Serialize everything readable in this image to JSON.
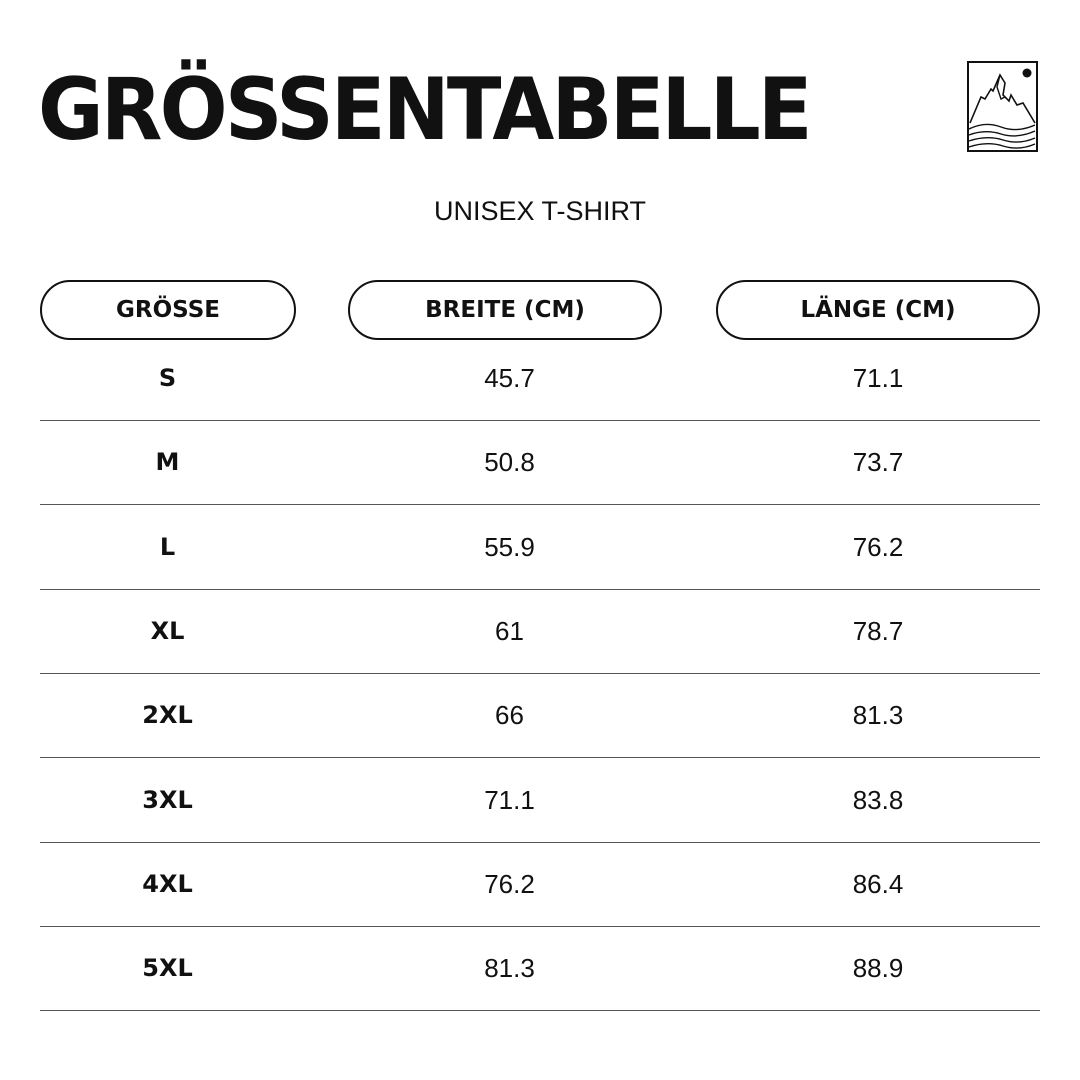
{
  "title": "GRÖSSENTABELLE",
  "subtitle": "UNISEX T-SHIRT",
  "logo": "mountain-sun-logo",
  "headers": [
    "GRÖSSE",
    "BREITE (CM)",
    "LÄNGE (CM)"
  ],
  "rows": [
    [
      "S",
      "45.7",
      "71.1"
    ],
    [
      "M",
      "50.8",
      "73.7"
    ],
    [
      "L",
      "55.9",
      "76.2"
    ],
    [
      "XL",
      "61",
      "78.7"
    ],
    [
      "2XL",
      "66",
      "81.3"
    ],
    [
      "3XL",
      "71.1",
      "83.8"
    ],
    [
      "4XL",
      "76.2",
      "86.4"
    ],
    [
      "5XL",
      "81.3",
      "88.9"
    ]
  ]
}
